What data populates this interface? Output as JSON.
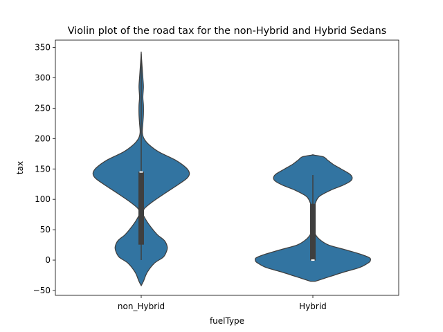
{
  "chart_data": {
    "type": "violin",
    "title": "Violin plot of the road tax for the non-Hybrid and Hybrid Sedans",
    "xlabel": "fuelType",
    "ylabel": "tax",
    "categories": [
      "non_Hybrid",
      "Hybrid"
    ],
    "ylim": [
      -58,
      362
    ],
    "yticks": [
      -50,
      0,
      50,
      100,
      150,
      200,
      250,
      300,
      350
    ],
    "ytick_labels": [
      "−50",
      "0",
      "50",
      "100",
      "150",
      "200",
      "250",
      "300",
      "350"
    ],
    "color": "#3274a1",
    "violins": [
      {
        "category": "non_Hybrid",
        "box": {
          "whisker_low": 0,
          "q1": 26,
          "median": 145,
          "q3": 145,
          "whisker_high": 340
        },
        "density_profile": [
          {
            "y": -42,
            "half_width": 0.0
          },
          {
            "y": -35,
            "half_width": 0.04
          },
          {
            "y": -20,
            "half_width": 0.11
          },
          {
            "y": -5,
            "half_width": 0.24
          },
          {
            "y": 5,
            "half_width": 0.4
          },
          {
            "y": 15,
            "half_width": 0.46
          },
          {
            "y": 22,
            "half_width": 0.47
          },
          {
            "y": 32,
            "half_width": 0.42
          },
          {
            "y": 42,
            "half_width": 0.29
          },
          {
            "y": 55,
            "half_width": 0.17
          },
          {
            "y": 67,
            "half_width": 0.08
          },
          {
            "y": 77,
            "half_width": 0.03
          },
          {
            "y": 85,
            "half_width": 0.06
          },
          {
            "y": 95,
            "half_width": 0.19
          },
          {
            "y": 110,
            "half_width": 0.43
          },
          {
            "y": 125,
            "half_width": 0.68
          },
          {
            "y": 135,
            "half_width": 0.83
          },
          {
            "y": 143,
            "half_width": 0.87
          },
          {
            "y": 152,
            "half_width": 0.81
          },
          {
            "y": 165,
            "half_width": 0.61
          },
          {
            "y": 178,
            "half_width": 0.32
          },
          {
            "y": 190,
            "half_width": 0.14
          },
          {
            "y": 200,
            "half_width": 0.05
          },
          {
            "y": 210,
            "half_width": 0.02
          },
          {
            "y": 225,
            "half_width": 0.03
          },
          {
            "y": 240,
            "half_width": 0.04
          },
          {
            "y": 255,
            "half_width": 0.04
          },
          {
            "y": 268,
            "half_width": 0.03
          },
          {
            "y": 285,
            "half_width": 0.04
          },
          {
            "y": 300,
            "half_width": 0.03
          },
          {
            "y": 320,
            "half_width": 0.015
          },
          {
            "y": 340,
            "half_width": 0.0
          }
        ]
      },
      {
        "category": "Hybrid",
        "box": {
          "whisker_low": 0,
          "q1": 0,
          "median": 0,
          "q3": 92,
          "whisker_high": 140
        },
        "density_profile": [
          {
            "y": -35,
            "half_width": 0.04
          },
          {
            "y": -30,
            "half_width": 0.21
          },
          {
            "y": -20,
            "half_width": 0.55
          },
          {
            "y": -12,
            "half_width": 0.85
          },
          {
            "y": -4,
            "half_width": 1.01
          },
          {
            "y": 0,
            "half_width": 1.04
          },
          {
            "y": 4,
            "half_width": 1.02
          },
          {
            "y": 10,
            "half_width": 0.85
          },
          {
            "y": 18,
            "half_width": 0.55
          },
          {
            "y": 25,
            "half_width": 0.28
          },
          {
            "y": 35,
            "half_width": 0.11
          },
          {
            "y": 45,
            "half_width": 0.03
          },
          {
            "y": 55,
            "half_width": 0.01
          },
          {
            "y": 65,
            "half_width": 0.01
          },
          {
            "y": 75,
            "half_width": 0.01
          },
          {
            "y": 85,
            "half_width": 0.02
          },
          {
            "y": 95,
            "half_width": 0.05
          },
          {
            "y": 105,
            "half_width": 0.12
          },
          {
            "y": 115,
            "half_width": 0.32
          },
          {
            "y": 123,
            "half_width": 0.54
          },
          {
            "y": 130,
            "half_width": 0.68
          },
          {
            "y": 136,
            "half_width": 0.71
          },
          {
            "y": 142,
            "half_width": 0.66
          },
          {
            "y": 150,
            "half_width": 0.51
          },
          {
            "y": 158,
            "half_width": 0.36
          },
          {
            "y": 165,
            "half_width": 0.26
          },
          {
            "y": 170,
            "half_width": 0.19
          },
          {
            "y": 173,
            "half_width": 0.0
          }
        ]
      }
    ],
    "grid": false,
    "legend": "none"
  }
}
